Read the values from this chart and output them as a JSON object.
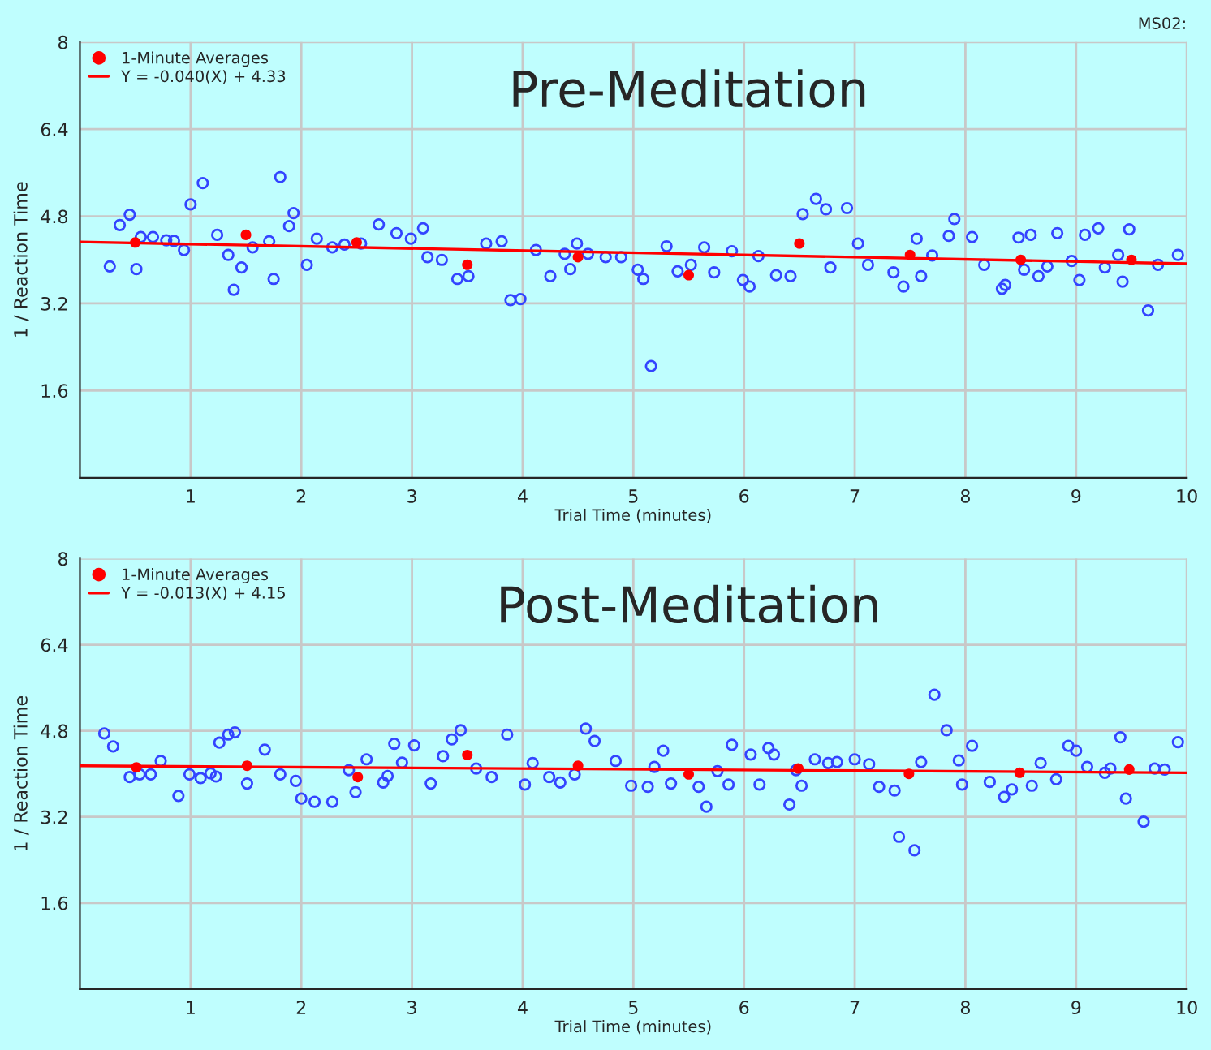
{
  "chart_data": [
    {
      "type": "scatter",
      "title": "Pre-Meditation",
      "xlabel": "Trial Time (minutes)",
      "ylabel": "1 / Reaction Time",
      "annotations": [
        "MS02:"
      ],
      "xlim": [
        0,
        10
      ],
      "ylim": [
        0,
        8
      ],
      "xticks": [
        1,
        2,
        3,
        4,
        5,
        6,
        7,
        8,
        9,
        10
      ],
      "yticks": [
        1.6,
        3.2,
        4.8,
        6.4,
        8
      ],
      "grid": true,
      "legend": "top left",
      "series": [
        {
          "marker": "circle",
          "color": "#3344ff",
          "x": [
            0.27,
            0.36,
            0.45,
            0.51,
            0.55,
            0.66,
            0.78,
            0.85,
            0.94,
            1.0,
            1.11,
            1.24,
            1.34,
            1.39,
            1.46,
            1.56,
            1.71,
            1.75,
            1.81,
            1.89,
            1.93,
            2.05,
            2.14,
            2.28,
            2.39,
            2.54,
            2.7,
            2.86,
            2.99,
            3.1,
            3.14,
            3.27,
            3.41,
            3.51,
            3.67,
            3.81,
            3.89,
            3.98,
            4.12,
            4.25,
            4.38,
            4.43,
            4.49,
            4.59,
            4.75,
            4.89,
            5.04,
            5.09,
            5.16,
            5.3,
            5.4,
            5.52,
            5.64,
            5.73,
            5.89,
            5.99,
            6.05,
            6.13,
            6.29,
            6.42,
            6.53,
            6.65,
            6.74,
            6.78,
            6.93,
            7.03,
            7.12,
            7.35,
            7.44,
            7.56,
            7.6,
            7.7,
            7.85,
            7.9,
            8.06,
            8.17,
            8.33,
            8.36,
            8.48,
            8.53,
            8.59,
            8.66,
            8.74,
            8.83,
            8.96,
            9.03,
            9.08,
            9.2,
            9.26,
            9.38,
            9.42,
            9.48,
            9.65,
            9.74,
            9.92
          ],
          "values": [
            3.88,
            4.64,
            4.83,
            3.83,
            4.42,
            4.42,
            4.36,
            4.35,
            4.18,
            5.02,
            5.41,
            4.46,
            4.09,
            3.45,
            3.86,
            4.23,
            4.34,
            3.65,
            5.52,
            4.62,
            4.86,
            3.91,
            4.39,
            4.23,
            4.28,
            4.3,
            4.65,
            4.49,
            4.39,
            4.58,
            4.05,
            4.0,
            3.65,
            3.7,
            4.3,
            4.34,
            3.26,
            3.28,
            4.18,
            3.7,
            4.11,
            3.83,
            4.3,
            4.11,
            4.05,
            4.05,
            3.82,
            3.65,
            2.05,
            4.25,
            3.79,
            3.91,
            4.23,
            3.77,
            4.16,
            3.63,
            3.51,
            4.07,
            3.72,
            3.7,
            4.84,
            5.12,
            4.93,
            3.86,
            4.95,
            4.3,
            3.91,
            3.77,
            3.51,
            4.39,
            3.7,
            4.08,
            4.44,
            4.75,
            4.42,
            3.91,
            3.47,
            3.54,
            4.41,
            3.82,
            4.46,
            3.7,
            3.88,
            4.49,
            3.98,
            3.63,
            4.46,
            4.58,
            3.86,
            4.09,
            3.6,
            4.56,
            3.07,
            3.91,
            4.09
          ]
        },
        {
          "marker": "circle",
          "name": "1-Minute Averages",
          "color": "#ff0000",
          "x": [
            0.5,
            1.5,
            2.5,
            3.5,
            4.5,
            5.5,
            6.5,
            7.5,
            8.5,
            9.5
          ],
          "values": [
            4.32,
            4.46,
            4.32,
            3.91,
            4.05,
            3.72,
            4.3,
            4.09,
            4.0,
            4.0
          ]
        },
        {
          "type": "line",
          "marker": "none",
          "name": "Y = -0.040(X) + 4.33",
          "color": "#ff0000",
          "x": [
            0,
            10
          ],
          "values": [
            4.33,
            3.93
          ]
        }
      ]
    },
    {
      "type": "scatter",
      "title": "Post-Meditation",
      "xlabel": "Trial Time (minutes)",
      "ylabel": "1 / Reaction Time",
      "xlim": [
        0,
        10
      ],
      "ylim": [
        0,
        8
      ],
      "xticks": [
        1,
        2,
        3,
        4,
        5,
        6,
        7,
        8,
        9,
        10
      ],
      "yticks": [
        1.6,
        3.2,
        4.8,
        6.4,
        8
      ],
      "grid": true,
      "legend": "top left",
      "series": [
        {
          "marker": "circle",
          "color": "#3344ff",
          "x": [
            0.22,
            0.3,
            0.45,
            0.54,
            0.64,
            0.73,
            0.89,
            0.99,
            1.09,
            1.18,
            1.23,
            1.26,
            1.34,
            1.4,
            1.51,
            1.67,
            1.81,
            1.95,
            2.0,
            2.12,
            2.28,
            2.43,
            2.49,
            2.59,
            2.74,
            2.78,
            2.84,
            2.91,
            3.02,
            3.17,
            3.28,
            3.36,
            3.44,
            3.58,
            3.72,
            3.86,
            4.02,
            4.09,
            4.24,
            4.34,
            4.47,
            4.57,
            4.65,
            4.84,
            4.98,
            5.13,
            5.19,
            5.27,
            5.34,
            5.59,
            5.66,
            5.76,
            5.86,
            5.89,
            6.06,
            6.14,
            6.22,
            6.27,
            6.41,
            6.47,
            6.52,
            6.64,
            6.76,
            6.84,
            7.0,
            7.13,
            7.22,
            7.36,
            7.4,
            7.54,
            7.6,
            7.72,
            7.83,
            7.94,
            7.97,
            8.06,
            8.22,
            8.35,
            8.42,
            8.6,
            8.68,
            8.82,
            8.93,
            9.0,
            9.1,
            9.26,
            9.31,
            9.4,
            9.45,
            9.61,
            9.71,
            9.8,
            9.92
          ],
          "values": [
            4.75,
            4.51,
            3.94,
            3.99,
            3.99,
            4.24,
            3.59,
            3.99,
            3.92,
            4.01,
            3.95,
            4.58,
            4.73,
            4.77,
            3.82,
            4.45,
            3.99,
            3.87,
            3.54,
            3.48,
            3.48,
            4.07,
            3.66,
            4.27,
            3.84,
            3.96,
            4.56,
            4.21,
            4.53,
            3.82,
            4.33,
            4.64,
            4.81,
            4.1,
            3.94,
            4.73,
            3.8,
            4.2,
            3.94,
            3.84,
            3.99,
            4.84,
            4.61,
            4.24,
            3.78,
            3.76,
            4.13,
            4.43,
            3.82,
            3.76,
            3.39,
            4.05,
            3.8,
            4.54,
            4.36,
            3.8,
            4.48,
            4.36,
            3.43,
            4.07,
            3.78,
            4.27,
            4.2,
            4.22,
            4.27,
            4.18,
            3.76,
            3.69,
            2.83,
            2.58,
            4.22,
            5.47,
            4.81,
            4.25,
            3.8,
            4.52,
            3.85,
            3.57,
            3.71,
            3.78,
            4.2,
            3.9,
            4.52,
            4.43,
            4.13,
            4.02,
            4.1,
            4.68,
            3.54,
            3.11,
            4.1,
            4.08,
            4.59
          ]
        },
        {
          "marker": "circle",
          "name": "1-Minute Averages",
          "color": "#ff0000",
          "x": [
            0.51,
            1.51,
            2.51,
            3.5,
            4.5,
            5.5,
            6.49,
            7.49,
            8.49,
            9.48
          ],
          "values": [
            4.12,
            4.15,
            3.94,
            4.35,
            4.15,
            3.99,
            4.1,
            4.0,
            4.02,
            4.08
          ]
        },
        {
          "type": "line",
          "marker": "none",
          "name": "Y = -0.013(X) + 4.15",
          "color": "#ff0000",
          "x": [
            0,
            10
          ],
          "values": [
            4.15,
            4.02
          ]
        }
      ]
    }
  ]
}
